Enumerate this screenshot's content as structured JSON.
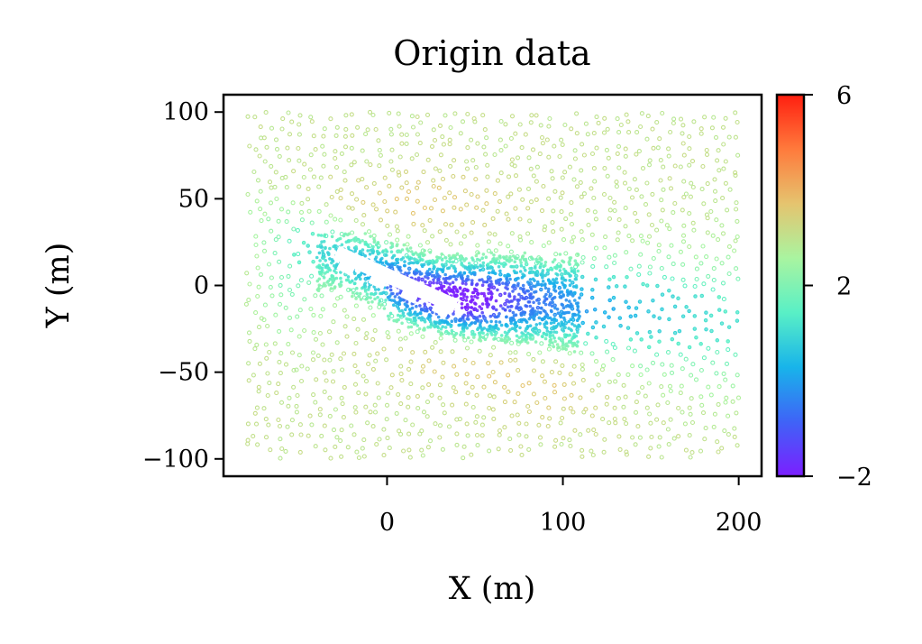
{
  "chart_data": {
    "type": "scatter",
    "title": "Origin data",
    "xlabel": "X (m)",
    "ylabel": "Y (m)",
    "xlim": [
      -93,
      213
    ],
    "ylim": [
      -110,
      110
    ],
    "xticks": [
      {
        "value": 0,
        "label": "0"
      },
      {
        "value": 100,
        "label": "100"
      },
      {
        "value": 200,
        "label": "200"
      }
    ],
    "yticks": [
      {
        "value": 100,
        "label": "100"
      },
      {
        "value": 50,
        "label": "50"
      },
      {
        "value": 0,
        "label": "0"
      },
      {
        "value": -50,
        "label": "−50"
      },
      {
        "value": -100,
        "label": "−100"
      }
    ],
    "colormap": "rainbow",
    "colorbar": {
      "range": [
        -2,
        6
      ],
      "ticks": [
        {
          "value": 6,
          "label": "6"
        },
        {
          "value": 2,
          "label": "2"
        },
        {
          "value": -2,
          "label": "−2"
        }
      ],
      "stops": [
        "#7b1fff",
        "#3f63f7",
        "#18b4ea",
        "#59f0c6",
        "#a9f4a0",
        "#e5c46f",
        "#ff7a3c",
        "#ff1f10"
      ]
    },
    "points_x_range": [
      -80,
      200
    ],
    "points_y_range": [
      -100,
      100
    ],
    "field_description": "Point cloud colored by value; values near 3 in the far field, low values (about -2 to 0) in a wake downstream of an inclined array of blocks, with a cyan recovery region near x 120-200, y -20",
    "obstacles": [
      {
        "x": -21,
        "y": 15
      },
      {
        "x": -3,
        "y": 7
      },
      {
        "x": 15,
        "y": -1
      },
      {
        "x": 33,
        "y": -9
      }
    ],
    "grid": false,
    "legend": "none"
  }
}
